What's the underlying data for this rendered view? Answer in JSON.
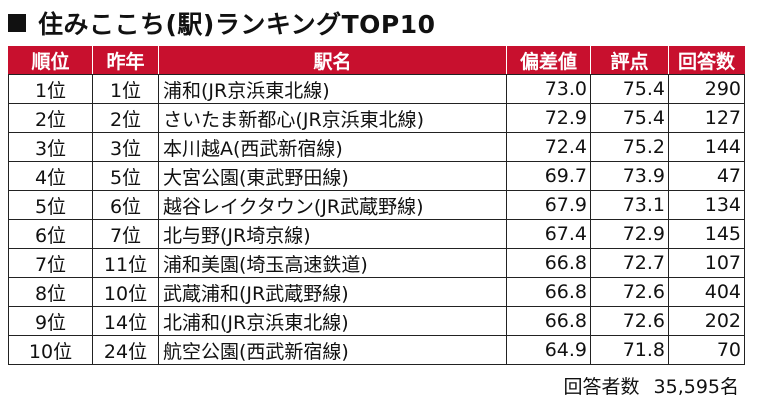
{
  "title": "住みここち(駅)ランキングTOP10",
  "headers": {
    "rank": "順位",
    "prev": "昨年",
    "station": "駅名",
    "score": "偏差値",
    "rating": "評点",
    "count": "回答数"
  },
  "rows": [
    {
      "rank": "1位",
      "prev": "1位",
      "station": "浦和(JR京浜東北線)",
      "score": "73.0",
      "rating": "75.4",
      "count": "290"
    },
    {
      "rank": "2位",
      "prev": "2位",
      "station": "さいたま新都心(JR京浜東北線)",
      "score": "72.9",
      "rating": "75.4",
      "count": "127"
    },
    {
      "rank": "3位",
      "prev": "3位",
      "station": "本川越A(西武新宿線)",
      "score": "72.4",
      "rating": "75.2",
      "count": "144"
    },
    {
      "rank": "4位",
      "prev": "5位",
      "station": "大宮公園(東武野田線)",
      "score": "69.7",
      "rating": "73.9",
      "count": "47"
    },
    {
      "rank": "5位",
      "prev": "6位",
      "station": "越谷レイクタウン(JR武蔵野線)",
      "score": "67.9",
      "rating": "73.1",
      "count": "134"
    },
    {
      "rank": "6位",
      "prev": "7位",
      "station": "北与野(JR埼京線)",
      "score": "67.4",
      "rating": "72.9",
      "count": "145"
    },
    {
      "rank": "7位",
      "prev": "11位",
      "station": "浦和美園(埼玉高速鉄道)",
      "score": "66.8",
      "rating": "72.7",
      "count": "107"
    },
    {
      "rank": "8位",
      "prev": "10位",
      "station": "武蔵浦和(JR武蔵野線)",
      "score": "66.8",
      "rating": "72.6",
      "count": "404"
    },
    {
      "rank": "9位",
      "prev": "14位",
      "station": "北浦和(JR京浜東北線)",
      "score": "66.8",
      "rating": "72.6",
      "count": "202"
    },
    {
      "rank": "10位",
      "prev": "24位",
      "station": "航空公園(西武新宿線)",
      "score": "64.9",
      "rating": "71.8",
      "count": "70"
    }
  ],
  "footer": {
    "label": "回答者数",
    "value": "35,595名"
  },
  "colors": {
    "header_bg": "#c8102e",
    "header_text": "#ffffff"
  }
}
